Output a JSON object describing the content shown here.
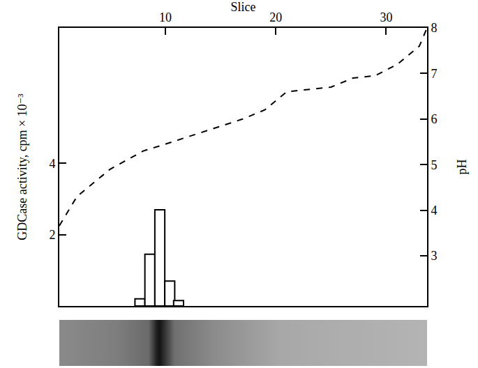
{
  "chart_data": {
    "type": "bar",
    "x_label": "Slice",
    "y_label": "GDCase activity, cpm × 10⁻³",
    "y2_label": "pH",
    "xlim": [
      0.4,
      33.7
    ],
    "xticks": [
      10,
      20,
      30
    ],
    "ylim": [
      0,
      7.8
    ],
    "yticks": [
      2,
      4
    ],
    "y2lim": [
      1.9,
      8
    ],
    "y2ticks": [
      3,
      4,
      5,
      6,
      7,
      8
    ],
    "grid": false,
    "series": [
      {
        "name": "GDCase activity",
        "type": "bar",
        "axis": "y",
        "color": "#ffffff",
        "x": [
          7.7,
          8.6,
          9.5,
          10.4,
          11.2
        ],
        "values": [
          0.2,
          1.45,
          2.7,
          0.7,
          0.15
        ]
      },
      {
        "name": "pH",
        "type": "line",
        "axis": "y2",
        "color": "#000000",
        "line_style": "dash",
        "x": [
          0.4,
          2,
          5,
          8,
          10,
          15,
          17,
          19,
          21,
          25,
          27,
          29,
          31,
          33,
          33.7
        ],
        "values": [
          3.66,
          4.3,
          4.9,
          5.3,
          5.45,
          5.85,
          6.0,
          6.2,
          6.6,
          6.7,
          6.9,
          6.95,
          7.2,
          7.6,
          8.0
        ]
      }
    ]
  }
}
